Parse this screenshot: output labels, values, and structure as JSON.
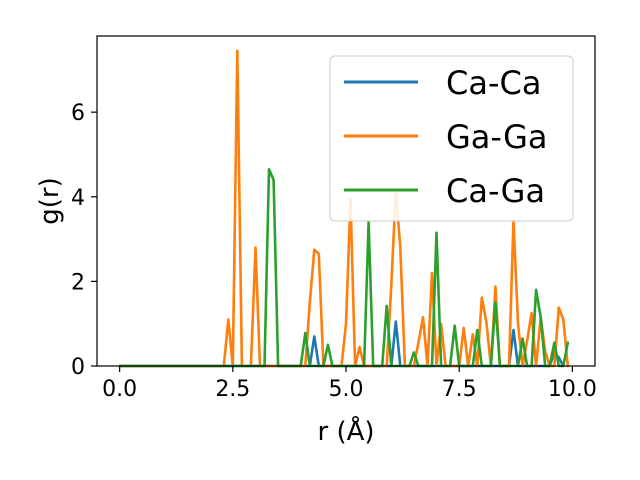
{
  "chart_data": {
    "type": "line",
    "xlabel": "r (Å)",
    "ylabel": "g(r)",
    "xlim": [
      -0.5,
      10.5
    ],
    "ylim": [
      0,
      7.8
    ],
    "xticks": [
      "0.0",
      "2.5",
      "5.0",
      "7.5",
      "10.0"
    ],
    "xtick_values": [
      0,
      2.5,
      5,
      7.5,
      10
    ],
    "yticks": [
      "0",
      "2",
      "4",
      "6"
    ],
    "ytick_values": [
      0,
      2,
      4,
      6
    ],
    "grid": false,
    "legend_position": "top-right",
    "series": [
      {
        "name": "Ca-Ca",
        "color": "#1f77b4",
        "x": [
          0,
          4.2,
          4.3,
          4.4,
          6.0,
          6.1,
          6.2,
          8.6,
          8.7,
          8.8,
          9.5,
          9.6,
          9.7,
          9.8
        ],
        "y": [
          0,
          0,
          0.7,
          0,
          0,
          1.05,
          0,
          0,
          0.85,
          0,
          0,
          0.32,
          0.2,
          0
        ]
      },
      {
        "name": "Ga-Ga",
        "color": "#ff7f0e",
        "x": [
          0,
          2.3,
          2.4,
          2.5,
          2.6,
          2.7,
          2.9,
          3.0,
          3.1,
          4.1,
          4.2,
          4.3,
          4.4,
          4.5,
          4.9,
          5.0,
          5.1,
          5.2,
          5.3,
          5.4,
          5.5,
          5.9,
          6.0,
          6.1,
          6.2,
          6.3,
          6.5,
          6.6,
          6.7,
          6.8,
          6.9,
          7.0,
          7.1,
          7.2,
          7.5,
          7.6,
          7.7,
          7.8,
          7.9,
          8.0,
          8.1,
          8.2,
          8.3,
          8.4,
          8.6,
          8.7,
          8.8,
          8.9,
          9.0,
          9.1,
          9.2,
          9.3,
          9.4,
          9.5,
          9.6,
          9.7,
          9.8,
          9.9
        ],
        "y": [
          0,
          0,
          1.1,
          0,
          7.45,
          0,
          0,
          2.8,
          0,
          0,
          1.5,
          2.75,
          2.65,
          0,
          0,
          1.0,
          3.95,
          0,
          0.45,
          0,
          0,
          0,
          1.9,
          4.15,
          2.8,
          0,
          0,
          0.55,
          1.15,
          0,
          2.2,
          0,
          1.0,
          0,
          0,
          0.9,
          0,
          0.75,
          0,
          1.62,
          1.05,
          0,
          1.88,
          0,
          0,
          3.45,
          1.0,
          0,
          0.6,
          1.25,
          0,
          1.15,
          0.35,
          0,
          0,
          1.38,
          1.1,
          0
        ]
      },
      {
        "name": "Ca-Ga",
        "color": "#2ca02c",
        "x": [
          0,
          3.2,
          3.3,
          3.4,
          3.5,
          4.0,
          4.1,
          4.2,
          4.3,
          4.5,
          4.6,
          4.7,
          5.4,
          5.5,
          5.6,
          5.8,
          5.9,
          6.0,
          6.1,
          6.4,
          6.5,
          6.6,
          6.9,
          7.0,
          7.1,
          7.2,
          7.3,
          7.4,
          7.5,
          7.8,
          7.9,
          8.0,
          8.2,
          8.3,
          8.4,
          8.8,
          8.9,
          9.0,
          9.1,
          9.2,
          9.3,
          9.4,
          9.5,
          9.6,
          9.7,
          9.8,
          9.9
        ],
        "y": [
          0,
          0,
          4.65,
          4.4,
          0,
          0,
          0.78,
          0,
          0,
          0,
          0.5,
          0,
          0,
          3.4,
          0,
          0,
          1.42,
          0,
          0,
          0,
          0.32,
          0,
          0,
          3.15,
          0,
          0,
          0,
          0.95,
          0,
          0,
          0.85,
          0,
          0,
          1.5,
          0,
          0,
          0.65,
          0,
          0,
          1.8,
          1.15,
          0,
          0,
          0.55,
          0,
          0,
          0.55
        ]
      }
    ]
  }
}
